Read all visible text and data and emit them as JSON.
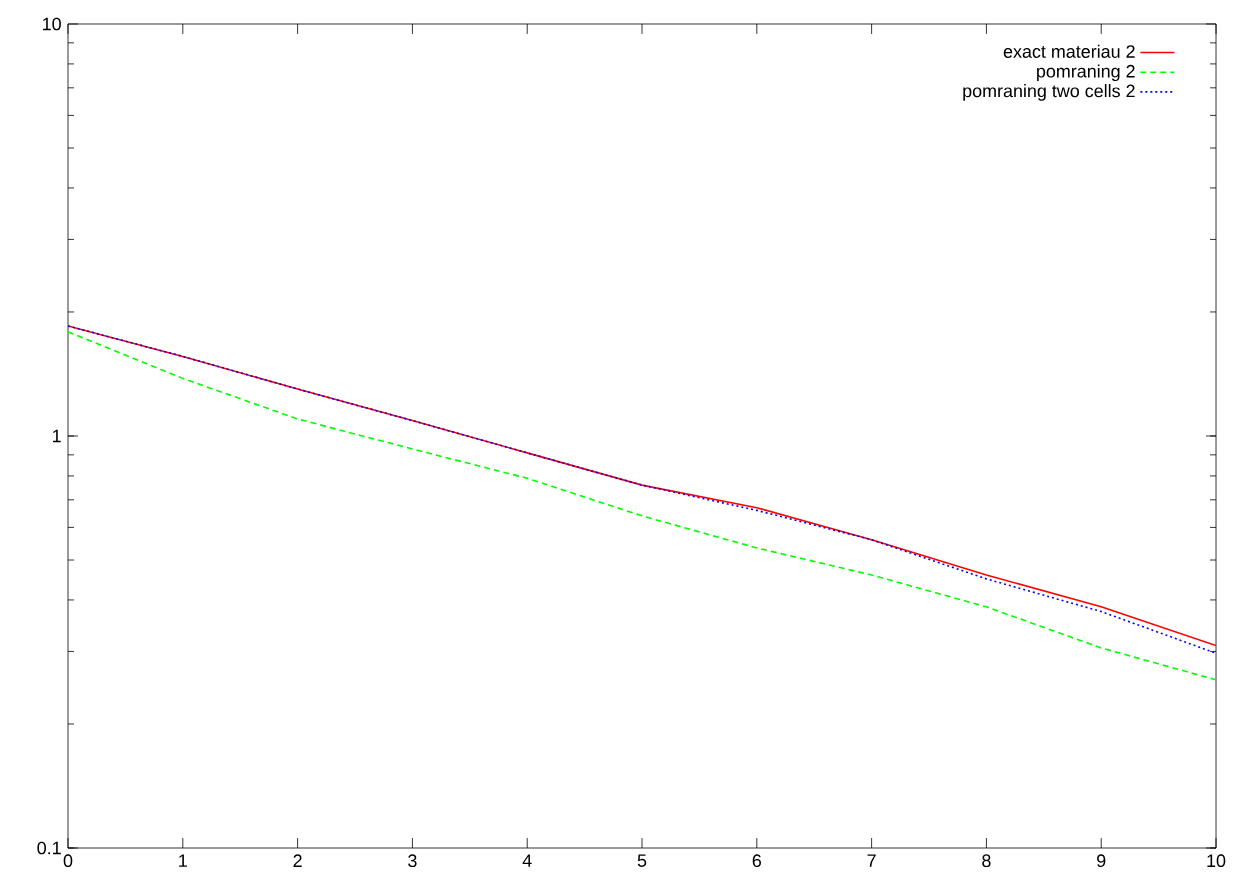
{
  "chart_data": {
    "type": "line",
    "x": [
      0,
      1,
      2,
      3,
      4,
      5,
      6,
      7,
      8,
      9,
      10
    ],
    "series": [
      {
        "name": "exact materiau 2",
        "color": "#ff0000",
        "line_style": "solid",
        "values": [
          1.85,
          1.56,
          1.3,
          1.09,
          0.91,
          0.76,
          0.67,
          0.56,
          0.46,
          0.385,
          0.31
        ]
      },
      {
        "name": "pomraning 2",
        "color": "#00ff00",
        "line_style": "dashed",
        "values": [
          1.79,
          1.38,
          1.1,
          0.93,
          0.79,
          0.64,
          0.535,
          0.46,
          0.385,
          0.306,
          0.256
        ]
      },
      {
        "name": "pomraning two cells 2",
        "color": "#0000ff",
        "line_style": "dotted",
        "values": [
          1.85,
          1.56,
          1.3,
          1.09,
          0.91,
          0.76,
          0.66,
          0.56,
          0.45,
          0.375,
          0.297
        ]
      }
    ],
    "xlim": [
      0,
      10
    ],
    "xticks": [
      0,
      1,
      2,
      3,
      4,
      5,
      6,
      7,
      8,
      9,
      10
    ],
    "ylim": [
      0.1,
      10
    ],
    "yticks": [
      0.1,
      1,
      10
    ],
    "log": "y",
    "legend": "top right",
    "grid": false,
    "marker": "none"
  }
}
